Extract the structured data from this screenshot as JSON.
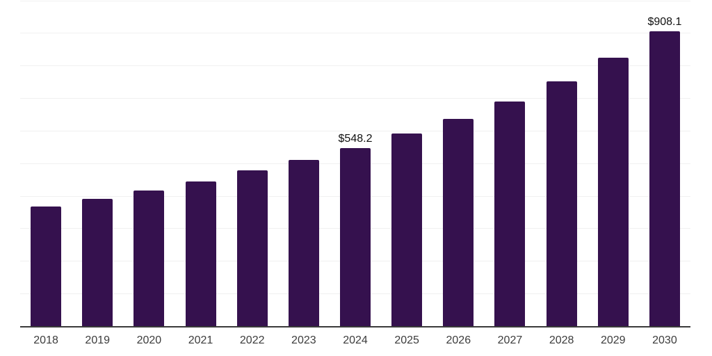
{
  "chart_data": {
    "type": "bar",
    "title": "",
    "xlabel": "",
    "ylabel": "",
    "categories": [
      "2018",
      "2019",
      "2020",
      "2021",
      "2022",
      "2023",
      "2024",
      "2025",
      "2026",
      "2027",
      "2028",
      "2029",
      "2030"
    ],
    "values": [
      368.5,
      392.5,
      418.5,
      446,
      480,
      512,
      548.2,
      592.5,
      638,
      691,
      753,
      827,
      908.1
    ],
    "data_labels": [
      "",
      "",
      "",
      "",
      "",
      "",
      "$548.2",
      "",
      "",
      "",
      "",
      "",
      "$908.1"
    ],
    "ylim": [
      0,
      1000
    ],
    "gridline_interval": 100,
    "grid": "horizontal",
    "legend": "none",
    "colors": {
      "bar": "#35114E",
      "gridline": "#f0f0f0",
      "axis_line": "#3a3a3a",
      "tick_label": "#3c3c3c",
      "value_label": "#111111",
      "background": "#ffffff"
    }
  }
}
